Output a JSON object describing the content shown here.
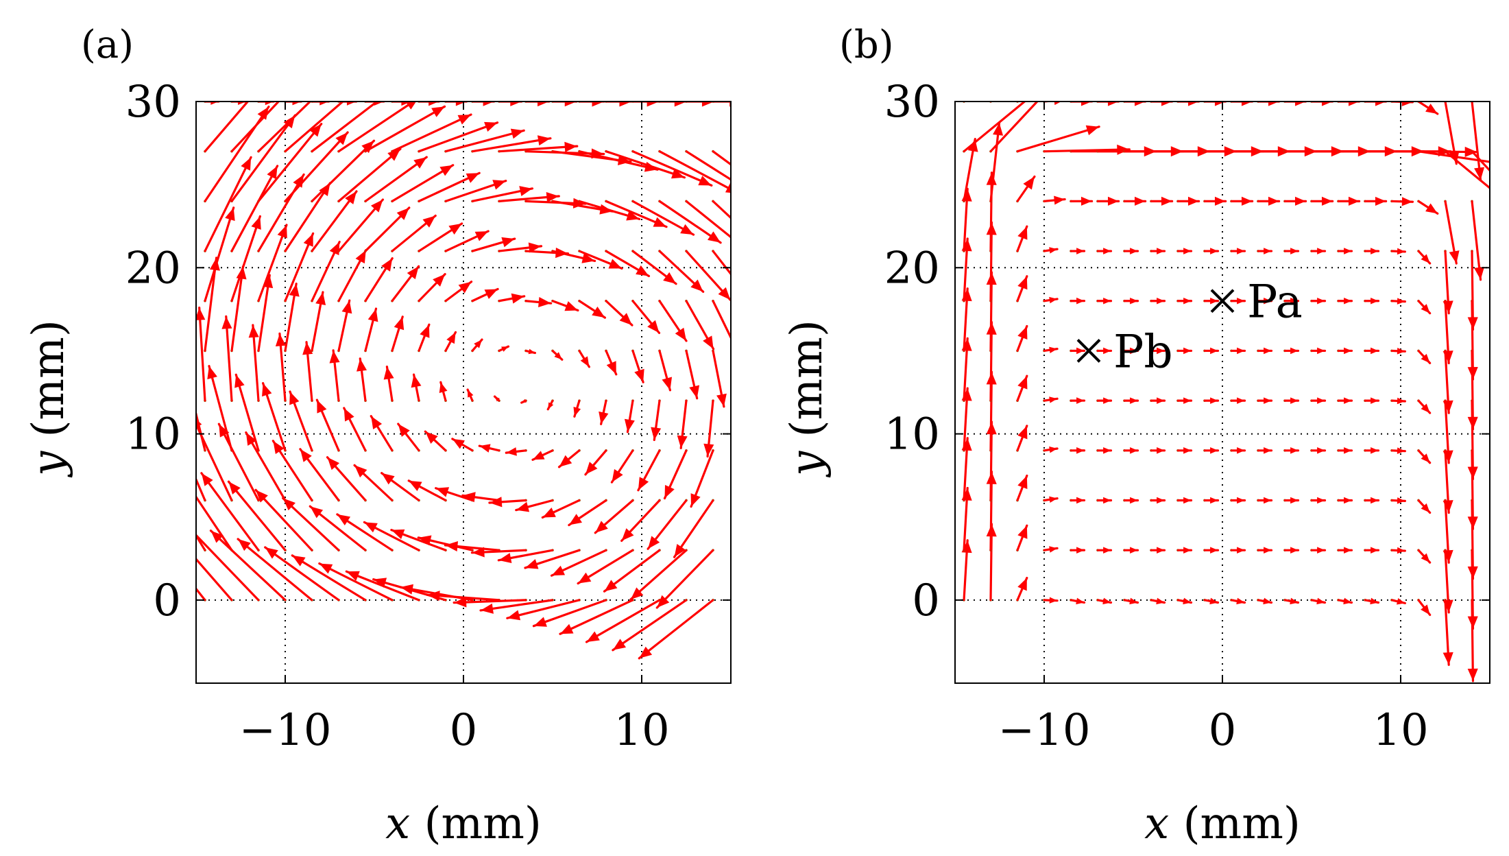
{
  "colors": {
    "arrow": "#ff0000",
    "arrow_base": "#22bb22",
    "axis": "#000000",
    "grid": "#000000",
    "marker": "#000000"
  },
  "chart_data": [
    {
      "type": "quiver",
      "panel_label": "(a)",
      "xlabel_var": "x",
      "xlabel_unit": " (mm)",
      "ylabel_var": "y",
      "ylabel_unit": " (mm)",
      "xlim": [
        -15,
        15
      ],
      "ylim": [
        -5,
        30
      ],
      "xticks": [
        -10,
        0,
        10
      ],
      "yticks": [
        0,
        10,
        20,
        30
      ],
      "xtick_labels": [
        "−10",
        "0",
        "10"
      ],
      "ytick_labels": [
        "0",
        "10",
        "20",
        "30"
      ],
      "grid": true,
      "flow": "single-cell circulation, vortex centre near x=3, y=13 mm; strong upflow near x=-13, strong downflow near x=14",
      "markers": []
    },
    {
      "type": "quiver",
      "panel_label": "(b)",
      "xlabel_var": "x",
      "xlabel_unit": " (mm)",
      "ylabel_var": "y",
      "ylabel_unit": " (mm)",
      "xlim": [
        -15,
        15
      ],
      "ylim": [
        -5,
        30
      ],
      "xticks": [
        -10,
        0,
        10
      ],
      "yticks": [
        0,
        10,
        20,
        30
      ],
      "xtick_labels": [
        "−10",
        "0",
        "10"
      ],
      "ytick_labels": [
        "0",
        "10",
        "20",
        "30"
      ],
      "grid": true,
      "flow": "wall-jet circulation: strong upflow near x=-14, strong downflow near x=14, strong rightward flow near top; weak rightward interior flow",
      "markers": [
        {
          "name": "Pa",
          "x": 0,
          "y": 18
        },
        {
          "name": "Pb",
          "x": -7.5,
          "y": 15
        }
      ]
    }
  ]
}
